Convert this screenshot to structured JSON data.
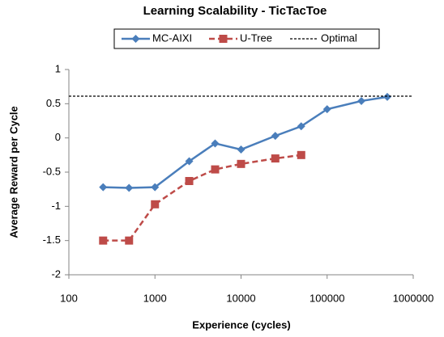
{
  "chart_data": {
    "type": "line",
    "title": "Learning Scalability - TicTacToe",
    "xlabel": "Experience (cycles)",
    "ylabel": "Average Reward per Cycle",
    "xscale": "log",
    "xlim": [
      100,
      1000000
    ],
    "xticks": [
      100,
      1000,
      10000,
      100000,
      1000000
    ],
    "ylim": [
      -2,
      1
    ],
    "yticks": [
      -2,
      -1.5,
      -1,
      -0.5,
      0,
      0.5,
      1
    ],
    "grid": false,
    "legend": "top",
    "series": [
      {
        "name": "MC-AIXI",
        "color": "#4a7ebb",
        "marker": "diamond",
        "dash": false,
        "x": [
          250,
          500,
          1000,
          2500,
          5000,
          10000,
          25000,
          50000,
          100000,
          250000,
          500000
        ],
        "values": [
          -0.72,
          -0.73,
          -0.72,
          -0.34,
          -0.08,
          -0.17,
          0.03,
          0.17,
          0.42,
          0.54,
          0.6
        ]
      },
      {
        "name": "U-Tree",
        "color": "#be4b48",
        "marker": "square",
        "dash": true,
        "x": [
          250,
          500,
          1000,
          2500,
          5000,
          10000,
          25000,
          50000
        ],
        "values": [
          -1.5,
          -1.5,
          -0.97,
          -0.63,
          -0.46,
          -0.38,
          -0.3,
          -0.25
        ]
      },
      {
        "name": "Optimal",
        "color": "#000000",
        "marker": "none",
        "dash": true,
        "value": 0.61
      }
    ]
  }
}
